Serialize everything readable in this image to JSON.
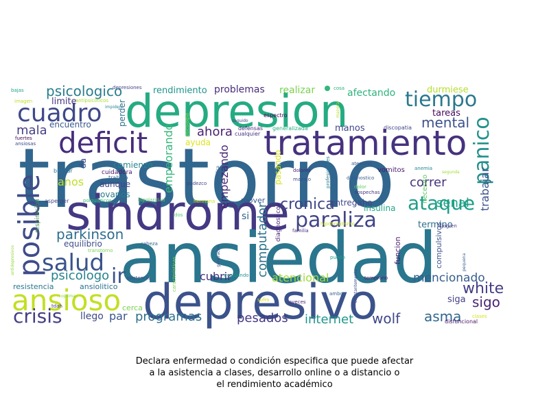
{
  "chart_data": {
    "type": "wordcloud",
    "caption": [
      "Declara enfermedad o condición especifica que puede afectar",
      "a la asistencia a clases, desarrollo online o a distancio o",
      "el rendimiento académico"
    ],
    "words": [
      {
        "text": "trastorno",
        "color": "#31668e"
      },
      {
        "text": "ansiedad",
        "color": "#2a768e"
      },
      {
        "text": "depresion",
        "color": "#25ab82"
      },
      {
        "text": "sindrome",
        "color": "#443983"
      },
      {
        "text": "depresivo",
        "color": "#3b528b"
      },
      {
        "text": "tratamiento",
        "color": "#46327e"
      },
      {
        "text": "deficit",
        "color": "#472d7b"
      },
      {
        "text": "posible",
        "color": "#3e4c8a"
      },
      {
        "text": "ansioso",
        "color": "#c2df23"
      },
      {
        "text": "cuadro",
        "color": "#3e4989"
      },
      {
        "text": "salud",
        "color": "#3a538b"
      },
      {
        "text": "paraliza",
        "color": "#414487"
      },
      {
        "text": "tiempo",
        "color": "#2a788e"
      },
      {
        "text": "panico",
        "color": "#21918c"
      },
      {
        "text": "ataque",
        "color": "#1f9e89"
      },
      {
        "text": "crisis",
        "color": "#433e85"
      },
      {
        "text": "psicologico",
        "color": "#287d8e"
      },
      {
        "text": "mental",
        "color": "#3b528b"
      },
      {
        "text": "cronica",
        "color": "#404688"
      },
      {
        "text": "parkinson",
        "color": "#2e6e8e"
      },
      {
        "text": "wolf",
        "color": "#3f4788"
      },
      {
        "text": "white",
        "color": "#433d84"
      },
      {
        "text": "asma",
        "color": "#31678e"
      },
      {
        "text": "sigo",
        "color": "#482475"
      },
      {
        "text": "psicologo",
        "color": "#26828e"
      },
      {
        "text": "ir",
        "color": "#3b528b"
      },
      {
        "text": "mala",
        "color": "#433e85"
      },
      {
        "text": "senal",
        "color": "#20a386"
      },
      {
        "text": "internet",
        "color": "#1f968b"
      },
      {
        "text": "pesados",
        "color": "#443983"
      },
      {
        "text": "programas",
        "color": "#2d708e"
      },
      {
        "text": "computador",
        "color": "#2c738e"
      },
      {
        "text": "empeorando",
        "color": "#35b779"
      },
      {
        "text": "empezando",
        "color": "#482677"
      },
      {
        "text": "ahora",
        "color": "#481f70"
      },
      {
        "text": "trabajar",
        "color": "#3b528b"
      },
      {
        "text": "mencionado",
        "color": "#365d8d"
      },
      {
        "text": "atencional",
        "color": "#a0da39"
      },
      {
        "text": "correr",
        "color": "#46327e"
      },
      {
        "text": "cubrir",
        "color": "#46307e"
      },
      {
        "text": "anos",
        "color": "#bddf26"
      },
      {
        "text": "llego",
        "color": "#3f4788"
      },
      {
        "text": "par",
        "color": "#3b528b"
      },
      {
        "text": "problemas",
        "color": "#472c7a"
      },
      {
        "text": "rendimiento",
        "color": "#1f948c"
      },
      {
        "text": "realizar",
        "color": "#7ad151"
      },
      {
        "text": "afectando",
        "color": "#2db27d"
      },
      {
        "text": "durmiese",
        "color": "#b5de2b"
      },
      {
        "text": "limite",
        "color": "#453581"
      },
      {
        "text": "encuentro",
        "color": "#38588c"
      },
      {
        "text": "perder",
        "color": "#2e6f8e"
      },
      {
        "text": "tareas",
        "color": "#46085c"
      },
      {
        "text": "manos",
        "color": "#404588"
      },
      {
        "text": "ayuda",
        "color": "#dde318"
      },
      {
        "text": "da",
        "color": "#3e4989"
      },
      {
        "text": "comienzo",
        "color": "#25848e"
      },
      {
        "text": "aunque",
        "color": "#404688"
      },
      {
        "text": "pasando",
        "color": "#d2e21b"
      },
      {
        "text": "entregaba",
        "color": "#3e4a89"
      },
      {
        "text": "insulina",
        "color": "#22a785"
      },
      {
        "text": "ovarios",
        "color": "#29798e"
      },
      {
        "text": "mover",
        "color": "#38598c"
      },
      {
        "text": "si",
        "color": "#33638d"
      },
      {
        "text": "termino",
        "color": "#2e6d8e"
      },
      {
        "text": "equilibrio",
        "color": "#3e4c8a"
      },
      {
        "text": "compulsivos",
        "color": "#3b528b"
      },
      {
        "text": "funcion",
        "color": "#481d6f"
      },
      {
        "text": "ansiolitico",
        "color": "#2c718e"
      },
      {
        "text": "resistencia",
        "color": "#2a778e"
      },
      {
        "text": "respiracion",
        "color": "#4c885a"
      },
      {
        "text": "cerca",
        "color": "#7ad151"
      },
      {
        "text": "siga",
        "color": "#424086"
      },
      {
        "text": "necesito",
        "color": "#5ec962"
      },
      {
        "text": "vomitos",
        "color": "#48196b"
      },
      {
        "text": "diagnosticos",
        "color": "#482878"
      },
      {
        "text": "cuidadora",
        "color": "#481769"
      },
      {
        "text": "trabajo",
        "color": "#34608d"
      },
      {
        "text": "espectro",
        "color": "#440154"
      },
      {
        "text": "generalizada",
        "color": "#26ad81"
      },
      {
        "text": "discopatia",
        "color": "#3f4889"
      },
      {
        "text": "defensas",
        "color": "#482878"
      },
      {
        "text": "cualquier",
        "color": "#46327e"
      },
      {
        "text": "psicologia",
        "color": "#90d743"
      },
      {
        "text": "imagen",
        "color": "#bddf26"
      },
      {
        "text": "depresiones",
        "color": "#414287"
      },
      {
        "text": "antipsicoticos",
        "color": "#a8db34"
      },
      {
        "text": "impiden",
        "color": "#26828e"
      },
      {
        "text": "bajas",
        "color": "#1fa088"
      },
      {
        "text": "fuertes",
        "color": "#440154"
      },
      {
        "text": "ansiosas",
        "color": "#3e4989"
      },
      {
        "text": "bipolar",
        "color": "#2c718e"
      },
      {
        "text": "asperger",
        "color": "#414487"
      },
      {
        "text": "polquisticos",
        "color": "#3bbb75"
      },
      {
        "text": "bipolaridad",
        "color": "#5ec962"
      },
      {
        "text": "hermana",
        "color": "#d2e21b"
      },
      {
        "text": "dos",
        "color": "#52c569"
      },
      {
        "text": "padezco",
        "color": "#414487"
      },
      {
        "text": "complica",
        "color": "#34608d"
      },
      {
        "text": "dolores",
        "color": "#482475"
      },
      {
        "text": "manejo",
        "color": "#3e4a89"
      },
      {
        "text": "profesionales",
        "color": "#297a8e"
      },
      {
        "text": "atencion",
        "color": "#3b528b"
      },
      {
        "text": "diagnostico",
        "color": "#365c8d"
      },
      {
        "text": "dolor",
        "color": "#5ec962"
      },
      {
        "text": "sospechas",
        "color": "#453882"
      },
      {
        "text": "anemia",
        "color": "#24878e"
      },
      {
        "text": "segunda",
        "color": "#a0da39"
      },
      {
        "text": "hipotiroidismo",
        "color": "#c8e020"
      },
      {
        "text": "familia",
        "color": "#46307e"
      },
      {
        "text": "sjogren",
        "color": "#453581"
      },
      {
        "text": "cabeza",
        "color": "#34618d"
      },
      {
        "text": "generacion",
        "color": "#3f4889"
      },
      {
        "text": "caracteristicas",
        "color": "#7ad151"
      },
      {
        "text": "evaluando",
        "color": "#21918c"
      },
      {
        "text": "puedo",
        "color": "#1e9b8a"
      },
      {
        "text": "temprano",
        "color": "#48186a"
      },
      {
        "text": "pequena",
        "color": "#355f8d"
      },
      {
        "text": "asistencia",
        "color": "#3e4a89"
      },
      {
        "text": "antidepresivos",
        "color": "#95d840"
      },
      {
        "text": "optima",
        "color": "#86d549"
      },
      {
        "text": "tdah",
        "color": "#46337f"
      },
      {
        "text": "transtorno",
        "color": "#7ad151"
      },
      {
        "text": "sufro",
        "color": "#d8e219"
      },
      {
        "text": "aveces",
        "color": "#482878"
      },
      {
        "text": "ambos",
        "color": "#33638d"
      },
      {
        "text": "constantemente",
        "color": "#3b528b"
      },
      {
        "text": "disfuncional",
        "color": "#481769"
      },
      {
        "text": "clases",
        "color": "#d8e219"
      },
      {
        "text": "seguido",
        "color": "#3f4889"
      },
      {
        "text": "cosa",
        "color": "#2db27d"
      },
      {
        "text": "manera",
        "color": "#bddf26"
      }
    ]
  }
}
